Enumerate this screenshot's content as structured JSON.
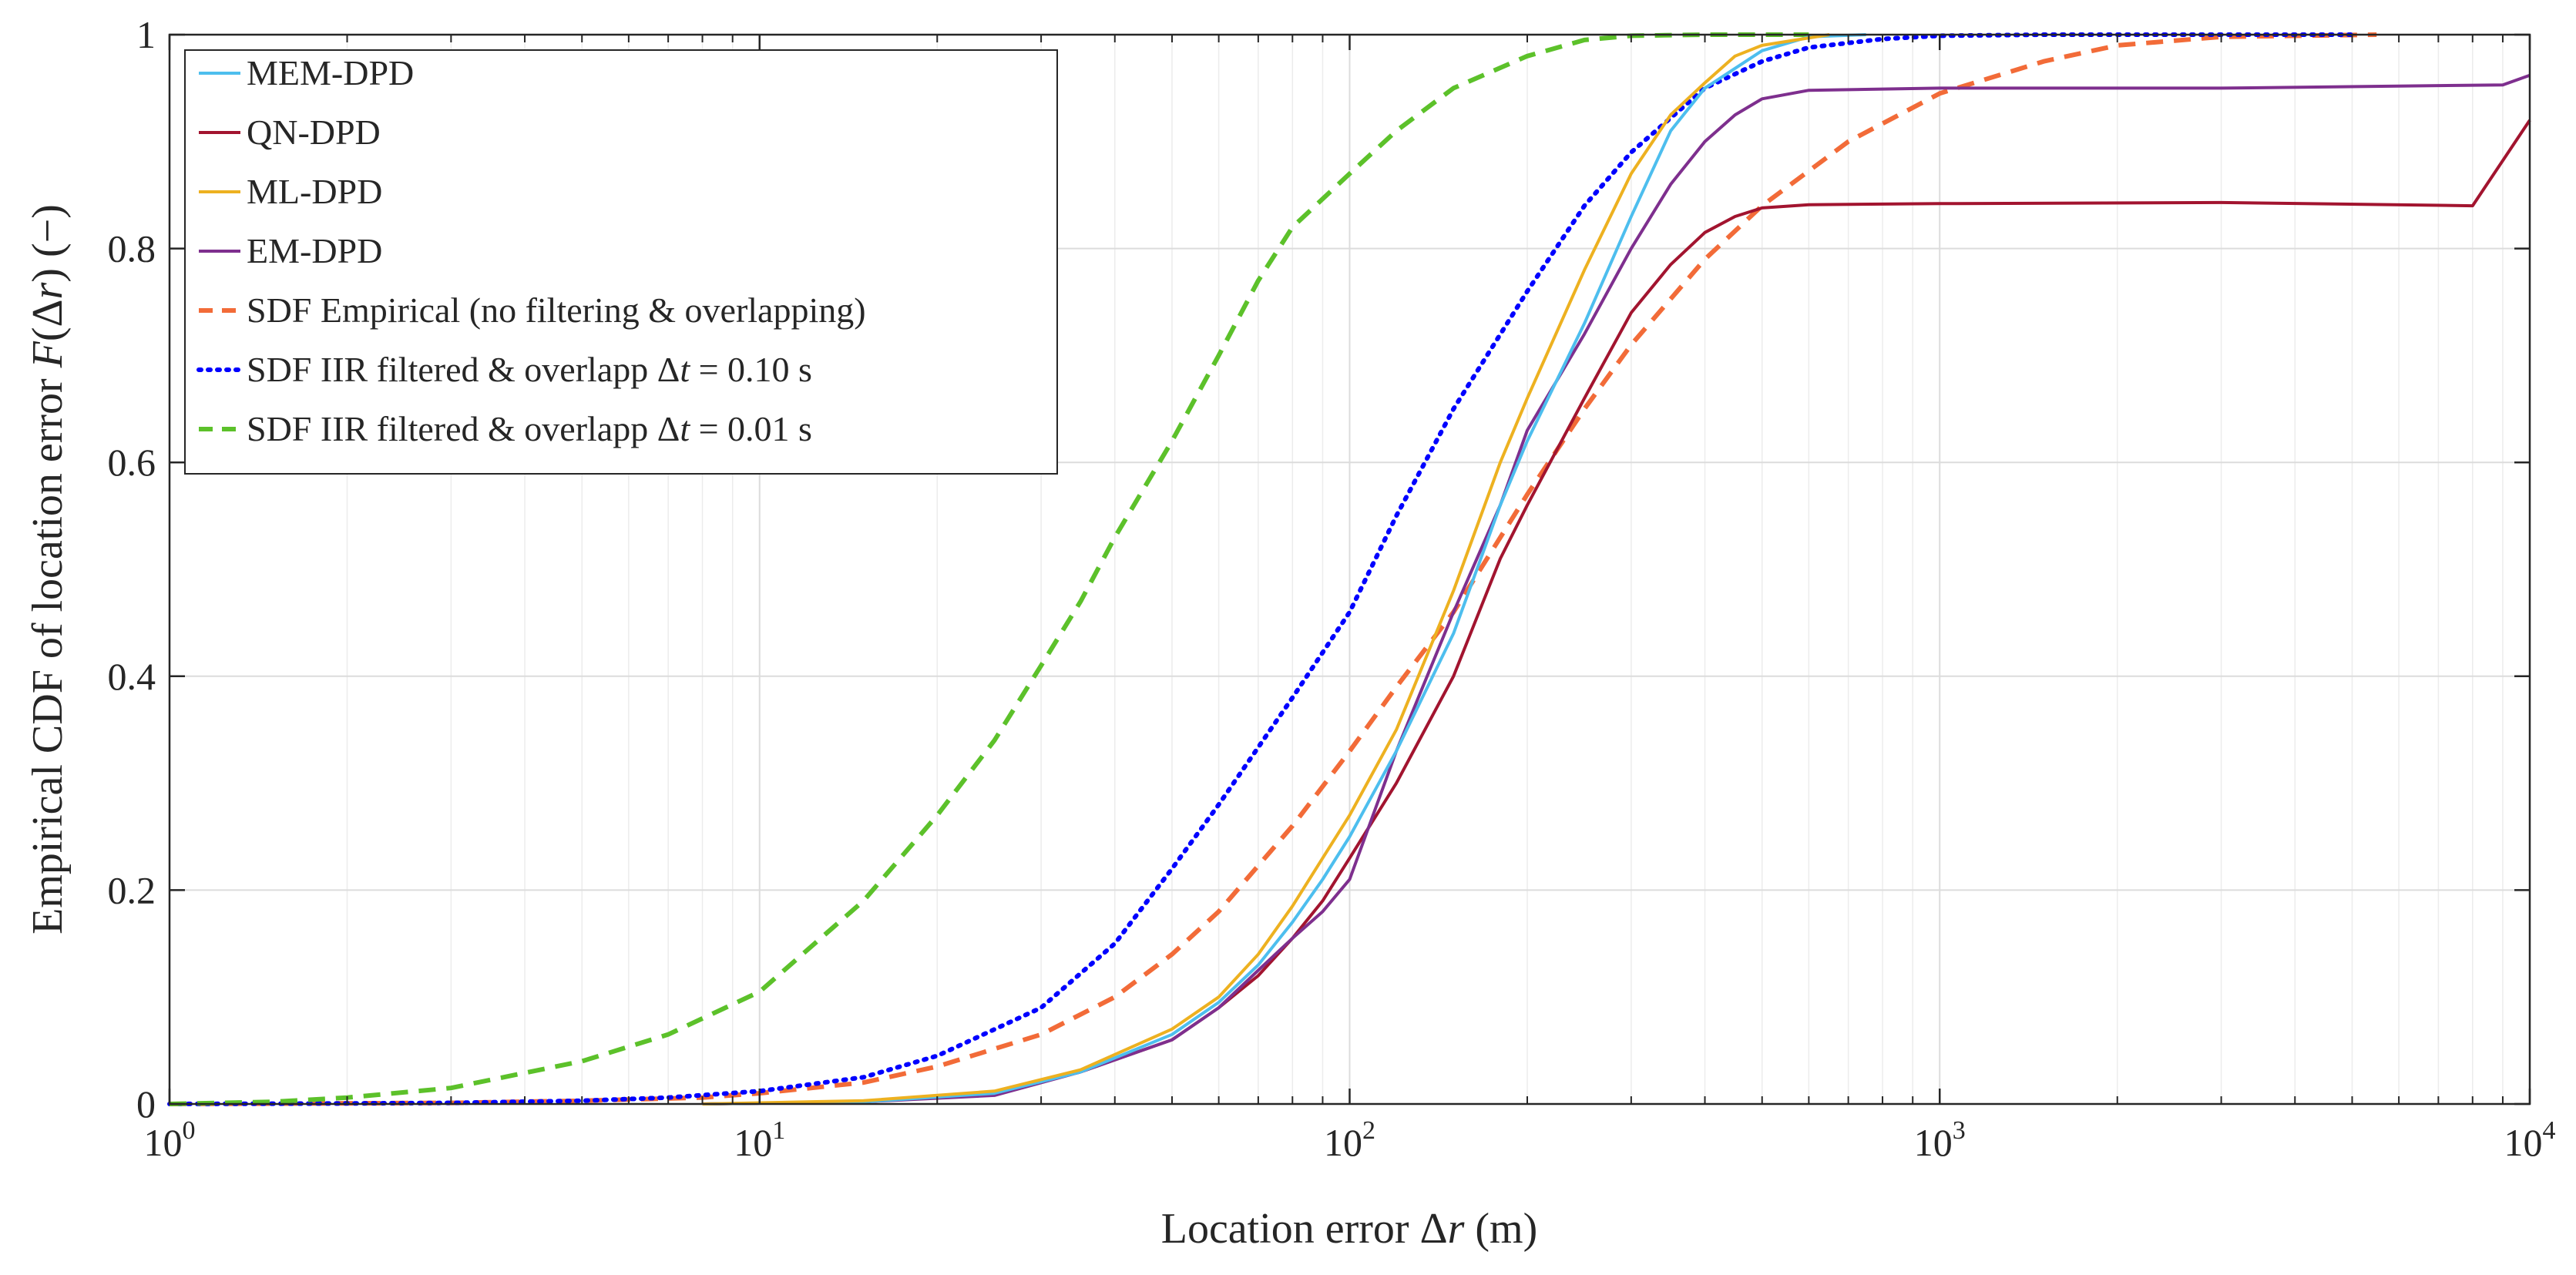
{
  "chart_data": {
    "type": "line",
    "xscale": "log",
    "xlim": [
      1,
      10000
    ],
    "ylim": [
      0,
      1
    ],
    "grid": true,
    "legend_position": "top-left",
    "xlabel": {
      "text": "Location error  Δr (m)",
      "pre": "Location error  Δ",
      "var": "r",
      "post": " (m)"
    },
    "ylabel": {
      "text": "Empirical CDF of location error  F(Δr) (−)",
      "pre": "Empirical CDF of location error  ",
      "var1": "F",
      "mid": "(Δ",
      "var2": "r",
      "post": ") (−)"
    },
    "x_tick_labels": [
      {
        "value": 1,
        "base": "10",
        "exp": "0"
      },
      {
        "value": 10,
        "base": "10",
        "exp": "1"
      },
      {
        "value": 100,
        "base": "10",
        "exp": "2"
      },
      {
        "value": 1000,
        "base": "10",
        "exp": "3"
      },
      {
        "value": 10000,
        "base": "10",
        "exp": "4"
      }
    ],
    "y_tick_labels": [
      {
        "value": 0,
        "label": "0"
      },
      {
        "value": 0.2,
        "label": "0.2"
      },
      {
        "value": 0.4,
        "label": "0.4"
      },
      {
        "value": 0.6,
        "label": "0.6"
      },
      {
        "value": 0.8,
        "label": "0.8"
      },
      {
        "value": 1,
        "label": "1"
      }
    ],
    "series": [
      {
        "name": "MEM-DPD",
        "color": "#4DBEEE",
        "style": "solid",
        "legend": {
          "text": "MEM-DPD"
        },
        "x": [
          8,
          15,
          25,
          35,
          50,
          60,
          70,
          80,
          90,
          100,
          120,
          150,
          180,
          200,
          250,
          300,
          350,
          400,
          500,
          600,
          750
        ],
        "y": [
          0,
          0.002,
          0.01,
          0.03,
          0.065,
          0.095,
          0.13,
          0.17,
          0.21,
          0.25,
          0.33,
          0.44,
          0.56,
          0.62,
          0.73,
          0.83,
          0.91,
          0.95,
          0.985,
          0.998,
          1.0
        ]
      },
      {
        "name": "QN-DPD",
        "color": "#A2142F",
        "style": "solid",
        "legend": {
          "text": "QN-DPD"
        },
        "x": [
          8,
          15,
          25,
          35,
          50,
          60,
          70,
          80,
          90,
          100,
          120,
          150,
          180,
          200,
          250,
          300,
          350,
          400,
          450,
          500,
          600,
          1000,
          3000,
          8000,
          10000
        ],
        "y": [
          0,
          0.002,
          0.01,
          0.03,
          0.06,
          0.09,
          0.12,
          0.155,
          0.19,
          0.23,
          0.3,
          0.4,
          0.51,
          0.56,
          0.66,
          0.74,
          0.785,
          0.815,
          0.83,
          0.838,
          0.841,
          0.842,
          0.843,
          0.84,
          0.92
        ]
      },
      {
        "name": "ML-DPD",
        "color": "#EDB120",
        "style": "solid",
        "legend": {
          "text": "ML-DPD"
        },
        "x": [
          8,
          15,
          25,
          35,
          50,
          60,
          70,
          80,
          90,
          100,
          120,
          150,
          180,
          200,
          250,
          300,
          350,
          400,
          450,
          500,
          650
        ],
        "y": [
          0,
          0.003,
          0.012,
          0.032,
          0.07,
          0.1,
          0.14,
          0.185,
          0.23,
          0.27,
          0.35,
          0.48,
          0.6,
          0.66,
          0.78,
          0.87,
          0.925,
          0.955,
          0.98,
          0.99,
          1.0
        ]
      },
      {
        "name": "EM-DPD",
        "color": "#7E2F8E",
        "style": "solid",
        "legend": {
          "text": "EM-DPD"
        },
        "x": [
          8,
          15,
          25,
          35,
          50,
          60,
          70,
          80,
          90,
          100,
          120,
          150,
          180,
          200,
          250,
          300,
          350,
          400,
          450,
          500,
          600,
          1000,
          3000,
          9000,
          10000
        ],
        "y": [
          0,
          0.002,
          0.008,
          0.03,
          0.06,
          0.09,
          0.125,
          0.155,
          0.18,
          0.21,
          0.33,
          0.46,
          0.56,
          0.63,
          0.72,
          0.8,
          0.86,
          0.9,
          0.925,
          0.94,
          0.948,
          0.95,
          0.95,
          0.953,
          0.962
        ]
      },
      {
        "name": "SDF Empirical (no filtering & overlapping)",
        "color": "#F26B38",
        "style": "dashed",
        "legend": {
          "text": "SDF Empirical (no filtering & overlapping)"
        },
        "x": [
          1,
          3,
          5,
          8,
          10,
          15,
          20,
          30,
          40,
          50,
          60,
          80,
          100,
          120,
          150,
          200,
          250,
          300,
          400,
          500,
          700,
          1000,
          1500,
          2000,
          3000,
          5500
        ],
        "y": [
          0,
          0.001,
          0.003,
          0.006,
          0.01,
          0.02,
          0.035,
          0.065,
          0.1,
          0.14,
          0.18,
          0.26,
          0.33,
          0.39,
          0.46,
          0.57,
          0.65,
          0.71,
          0.79,
          0.84,
          0.9,
          0.945,
          0.975,
          0.99,
          0.998,
          1.0
        ]
      },
      {
        "name": "SDF IIR filtered & overlapp Δt = 0.10 s",
        "color": "#0000FF",
        "style": "dotted",
        "legend": {
          "pre": "SDF IIR filtered & overlapp Δ",
          "var": "t",
          "post": " = 0.10 s"
        },
        "x": [
          1,
          2,
          3,
          5,
          7,
          10,
          15,
          20,
          30,
          40,
          50,
          60,
          80,
          100,
          120,
          150,
          200,
          250,
          300,
          400,
          500,
          600,
          800,
          1000,
          1500,
          2000,
          5000
        ],
        "y": [
          0,
          0.0005,
          0.001,
          0.003,
          0.006,
          0.012,
          0.025,
          0.045,
          0.09,
          0.15,
          0.22,
          0.28,
          0.38,
          0.46,
          0.55,
          0.65,
          0.76,
          0.84,
          0.89,
          0.95,
          0.975,
          0.988,
          0.996,
          0.999,
          1.0,
          1.0,
          1.0
        ]
      },
      {
        "name": "SDF IIR filtered & overlapp Δt = 0.01 s",
        "color": "#5CC12A",
        "style": "dashed",
        "legend": {
          "pre": "SDF IIR filtered & overlapp Δ",
          "var": "t",
          "post": " = 0.01 s"
        },
        "x": [
          1,
          1.5,
          2,
          3,
          5,
          7,
          10,
          15,
          20,
          25,
          30,
          35,
          40,
          50,
          60,
          70,
          80,
          100,
          120,
          150,
          200,
          250,
          300,
          400,
          500,
          600
        ],
        "y": [
          0,
          0.002,
          0.006,
          0.015,
          0.04,
          0.065,
          0.105,
          0.19,
          0.27,
          0.34,
          0.41,
          0.47,
          0.53,
          0.62,
          0.7,
          0.77,
          0.82,
          0.87,
          0.91,
          0.95,
          0.98,
          0.995,
          0.999,
          1.0,
          1.0,
          1.0
        ]
      }
    ]
  }
}
